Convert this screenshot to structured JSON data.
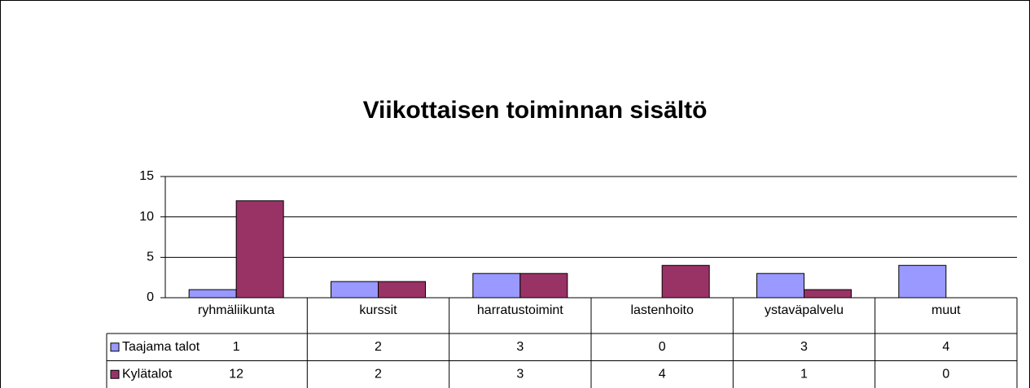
{
  "chart_data": {
    "type": "bar",
    "title": "Viikottaisen toiminnan sisältö",
    "categories": [
      "ryhmäliikunta",
      "kurssit",
      "harratustoimint",
      "lastenhoito",
      "ystaväpalvelu",
      "muut"
    ],
    "series": [
      {
        "name": "Taajama talot",
        "color": "#9999ff",
        "values": [
          1,
          2,
          3,
          0,
          3,
          4
        ]
      },
      {
        "name": "Kylätalot",
        "color": "#993366",
        "values": [
          12,
          2,
          3,
          4,
          1,
          0
        ]
      }
    ],
    "ylim": [
      0,
      15
    ],
    "yticks": [
      0,
      5,
      10,
      15
    ],
    "grid": true
  }
}
